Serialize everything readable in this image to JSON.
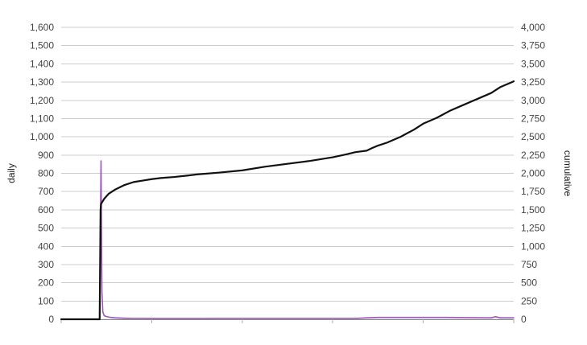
{
  "chart_data": {
    "type": "line",
    "title": "",
    "xlabel": "",
    "ylabel_left": "daily",
    "ylabel_right": "cumulative",
    "ylim_left": [
      0,
      1600
    ],
    "ylim_right": [
      0,
      4000
    ],
    "yticks_left": [
      "0",
      "100",
      "200",
      "300",
      "400",
      "500",
      "600",
      "700",
      "800",
      "900",
      "1,000",
      "1,100",
      "1,200",
      "1,300",
      "1,400",
      "1,500",
      "1,600"
    ],
    "yticks_right": [
      "0",
      "250",
      "500",
      "750",
      "1,000",
      "1,250",
      "1,500",
      "1,750",
      "2,000",
      "2,250",
      "2,500",
      "2,750",
      "3,000",
      "3,250",
      "3,500",
      "3,750",
      "4,000"
    ],
    "xlim": [
      0,
      100
    ],
    "xticks": [],
    "grid": true,
    "legend": "none",
    "colors": {
      "daily": "#9b59b6",
      "cumulative": "#111111",
      "grid": "#cccccc"
    },
    "series": [
      {
        "axis": "left",
        "points": [
          [
            0,
            0
          ],
          [
            8.5,
            0
          ],
          [
            8.6,
            300
          ],
          [
            8.7,
            600
          ],
          [
            8.8,
            868
          ],
          [
            8.9,
            500
          ],
          [
            9.0,
            150
          ],
          [
            9.2,
            40
          ],
          [
            9.5,
            20
          ],
          [
            10,
            15
          ],
          [
            11,
            10
          ],
          [
            12,
            8
          ],
          [
            14,
            6
          ],
          [
            16,
            5
          ],
          [
            18,
            5
          ],
          [
            20,
            4
          ],
          [
            25,
            4
          ],
          [
            30,
            4
          ],
          [
            35,
            5
          ],
          [
            40,
            5
          ],
          [
            45,
            5
          ],
          [
            50,
            5
          ],
          [
            55,
            5
          ],
          [
            60,
            5
          ],
          [
            65,
            5
          ],
          [
            67.5,
            8
          ],
          [
            70,
            10
          ],
          [
            75,
            10
          ],
          [
            80,
            10
          ],
          [
            85,
            10
          ],
          [
            90,
            9
          ],
          [
            95,
            8
          ],
          [
            96,
            14
          ],
          [
            97,
            8
          ],
          [
            100,
            8
          ]
        ]
      },
      {
        "axis": "right",
        "points": [
          [
            0,
            0
          ],
          [
            8.5,
            0
          ],
          [
            8.7,
            1500
          ],
          [
            8.8,
            1580
          ],
          [
            9.5,
            1650
          ],
          [
            10.5,
            1720
          ],
          [
            12,
            1780
          ],
          [
            14,
            1840
          ],
          [
            16,
            1880
          ],
          [
            18,
            1900
          ],
          [
            20,
            1920
          ],
          [
            22,
            1935
          ],
          [
            25,
            1950
          ],
          [
            28,
            1970
          ],
          [
            30,
            1985
          ],
          [
            35,
            2010
          ],
          [
            40,
            2040
          ],
          [
            45,
            2090
          ],
          [
            50,
            2130
          ],
          [
            55,
            2170
          ],
          [
            60,
            2220
          ],
          [
            63,
            2260
          ],
          [
            65,
            2290
          ],
          [
            67.5,
            2310
          ],
          [
            68.5,
            2340
          ],
          [
            70,
            2380
          ],
          [
            72,
            2420
          ],
          [
            75,
            2500
          ],
          [
            78,
            2600
          ],
          [
            80,
            2680
          ],
          [
            83,
            2760
          ],
          [
            86,
            2860
          ],
          [
            89,
            2940
          ],
          [
            92,
            3020
          ],
          [
            95,
            3100
          ],
          [
            97,
            3180
          ],
          [
            100,
            3260
          ]
        ]
      }
    ]
  }
}
